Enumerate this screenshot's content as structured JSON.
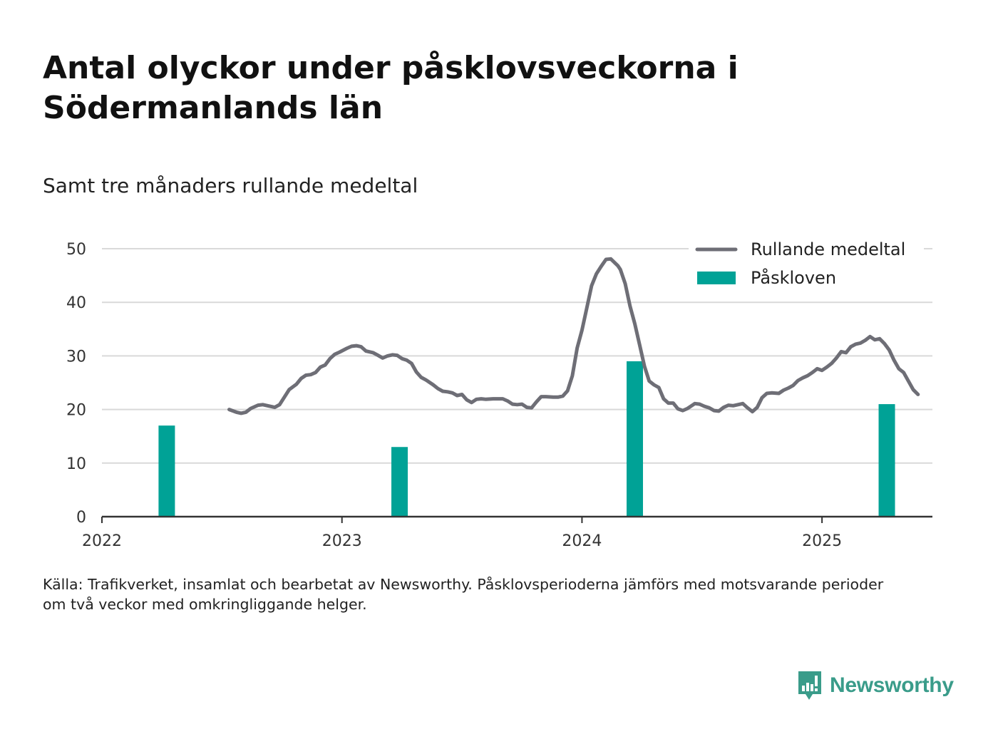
{
  "title": "Antal olyckor under påsklovsveckorna i Södermanlands län",
  "subtitle": "Samt tre månaders rullande medeltal",
  "source_lines": [
    "Källa: Trafikverket, insamlat och bearbetat av Newsworthy. Påsklovsperioderna jämförs med motsvarande perioder",
    "om två veckor med omkringliggande helger."
  ],
  "brand": {
    "name": "Newsworthy",
    "color": "#3a9c8a"
  },
  "chart_data": {
    "type": "bar+line",
    "x_unit": "year (decimal)",
    "xlim": [
      2022,
      2025.46
    ],
    "ylim": [
      0,
      50
    ],
    "x_ticks": [
      2022,
      2023,
      2024,
      2025
    ],
    "y_ticks": [
      0,
      10,
      20,
      30,
      40,
      50
    ],
    "grid": true,
    "legend_position": "top-right",
    "colors": {
      "line": "#6e6e76",
      "bars": "#00a296",
      "grid": "#d9d9d9",
      "axis": "#333333"
    },
    "bars": {
      "name": "Påskloven",
      "x": [
        2022.27,
        2023.24,
        2024.22,
        2025.27
      ],
      "values": [
        17,
        13,
        29,
        21
      ]
    },
    "line": {
      "name": "Rullande medeltal",
      "points": [
        [
          2022.53,
          20.0
        ],
        [
          2022.56,
          19.5
        ],
        [
          2022.58,
          19.3
        ],
        [
          2022.6,
          19.5
        ],
        [
          2022.62,
          20.2
        ],
        [
          2022.65,
          20.8
        ],
        [
          2022.67,
          20.9
        ],
        [
          2022.7,
          20.6
        ],
        [
          2022.72,
          20.4
        ],
        [
          2022.74,
          20.9
        ],
        [
          2022.76,
          22.3
        ],
        [
          2022.78,
          23.7
        ],
        [
          2022.81,
          24.7
        ],
        [
          2022.83,
          25.8
        ],
        [
          2022.85,
          26.4
        ],
        [
          2022.87,
          26.5
        ],
        [
          2022.89,
          26.9
        ],
        [
          2022.91,
          27.9
        ],
        [
          2022.93,
          28.3
        ],
        [
          2022.95,
          29.5
        ],
        [
          2022.97,
          30.3
        ],
        [
          2022.99,
          30.7
        ],
        [
          2023.02,
          31.4
        ],
        [
          2023.04,
          31.8
        ],
        [
          2023.06,
          31.9
        ],
        [
          2023.08,
          31.7
        ],
        [
          2023.1,
          30.9
        ],
        [
          2023.13,
          30.6
        ],
        [
          2023.15,
          30.1
        ],
        [
          2023.17,
          29.6
        ],
        [
          2023.19,
          30.0
        ],
        [
          2023.21,
          30.2
        ],
        [
          2023.23,
          30.1
        ],
        [
          2023.25,
          29.5
        ],
        [
          2023.27,
          29.2
        ],
        [
          2023.29,
          28.6
        ],
        [
          2023.31,
          27.0
        ],
        [
          2023.33,
          26.0
        ],
        [
          2023.35,
          25.5
        ],
        [
          2023.38,
          24.6
        ],
        [
          2023.4,
          23.9
        ],
        [
          2023.42,
          23.4
        ],
        [
          2023.44,
          23.3
        ],
        [
          2023.46,
          23.1
        ],
        [
          2023.48,
          22.6
        ],
        [
          2023.5,
          22.8
        ],
        [
          2023.52,
          21.8
        ],
        [
          2023.54,
          21.3
        ],
        [
          2023.56,
          21.9
        ],
        [
          2023.58,
          22.0
        ],
        [
          2023.6,
          21.9
        ],
        [
          2023.63,
          22.0
        ],
        [
          2023.65,
          22.0
        ],
        [
          2023.67,
          22.0
        ],
        [
          2023.69,
          21.6
        ],
        [
          2023.71,
          21.0
        ],
        [
          2023.73,
          20.9
        ],
        [
          2023.75,
          21.0
        ],
        [
          2023.77,
          20.4
        ],
        [
          2023.79,
          20.3
        ],
        [
          2023.81,
          21.4
        ],
        [
          2023.83,
          22.4
        ],
        [
          2023.85,
          22.4
        ],
        [
          2023.88,
          22.3
        ],
        [
          2023.9,
          22.3
        ],
        [
          2023.92,
          22.5
        ],
        [
          2023.94,
          23.5
        ],
        [
          2023.96,
          26.3
        ],
        [
          2023.98,
          31.5
        ],
        [
          2024.0,
          34.8
        ],
        [
          2024.02,
          38.9
        ],
        [
          2024.04,
          43.1
        ],
        [
          2024.06,
          45.3
        ],
        [
          2024.08,
          46.7
        ],
        [
          2024.1,
          48.0
        ],
        [
          2024.12,
          48.1
        ],
        [
          2024.15,
          46.8
        ],
        [
          2024.16,
          46.1
        ],
        [
          2024.18,
          43.5
        ],
        [
          2024.2,
          39.3
        ],
        [
          2024.22,
          36.0
        ],
        [
          2024.24,
          32.1
        ],
        [
          2024.26,
          28.1
        ],
        [
          2024.28,
          25.3
        ],
        [
          2024.3,
          24.6
        ],
        [
          2024.32,
          24.1
        ],
        [
          2024.34,
          22.0
        ],
        [
          2024.36,
          21.2
        ],
        [
          2024.38,
          21.2
        ],
        [
          2024.4,
          20.1
        ],
        [
          2024.42,
          19.8
        ],
        [
          2024.44,
          20.2
        ],
        [
          2024.47,
          21.1
        ],
        [
          2024.49,
          21.0
        ],
        [
          2024.51,
          20.6
        ],
        [
          2024.53,
          20.3
        ],
        [
          2024.55,
          19.8
        ],
        [
          2024.57,
          19.7
        ],
        [
          2024.59,
          20.4
        ],
        [
          2024.61,
          20.8
        ],
        [
          2024.63,
          20.7
        ],
        [
          2024.65,
          20.9
        ],
        [
          2024.67,
          21.1
        ],
        [
          2024.69,
          20.3
        ],
        [
          2024.71,
          19.6
        ],
        [
          2024.73,
          20.4
        ],
        [
          2024.75,
          22.2
        ],
        [
          2024.77,
          23.0
        ],
        [
          2024.79,
          23.1
        ],
        [
          2024.82,
          23.0
        ],
        [
          2024.84,
          23.6
        ],
        [
          2024.86,
          24.0
        ],
        [
          2024.88,
          24.5
        ],
        [
          2024.9,
          25.4
        ],
        [
          2024.92,
          25.9
        ],
        [
          2024.94,
          26.3
        ],
        [
          2024.96,
          26.9
        ],
        [
          2024.98,
          27.6
        ],
        [
          2025.0,
          27.3
        ],
        [
          2025.02,
          27.9
        ],
        [
          2025.04,
          28.6
        ],
        [
          2025.06,
          29.6
        ],
        [
          2025.08,
          30.8
        ],
        [
          2025.1,
          30.6
        ],
        [
          2025.12,
          31.7
        ],
        [
          2025.14,
          32.2
        ],
        [
          2025.16,
          32.4
        ],
        [
          2025.18,
          32.9
        ],
        [
          2025.2,
          33.6
        ],
        [
          2025.22,
          33.0
        ],
        [
          2025.24,
          33.2
        ],
        [
          2025.26,
          32.3
        ],
        [
          2025.28,
          31.1
        ],
        [
          2025.3,
          29.2
        ],
        [
          2025.32,
          27.6
        ],
        [
          2025.34,
          26.9
        ],
        [
          2025.36,
          25.3
        ],
        [
          2025.38,
          23.7
        ],
        [
          2025.4,
          22.8
        ]
      ]
    }
  }
}
